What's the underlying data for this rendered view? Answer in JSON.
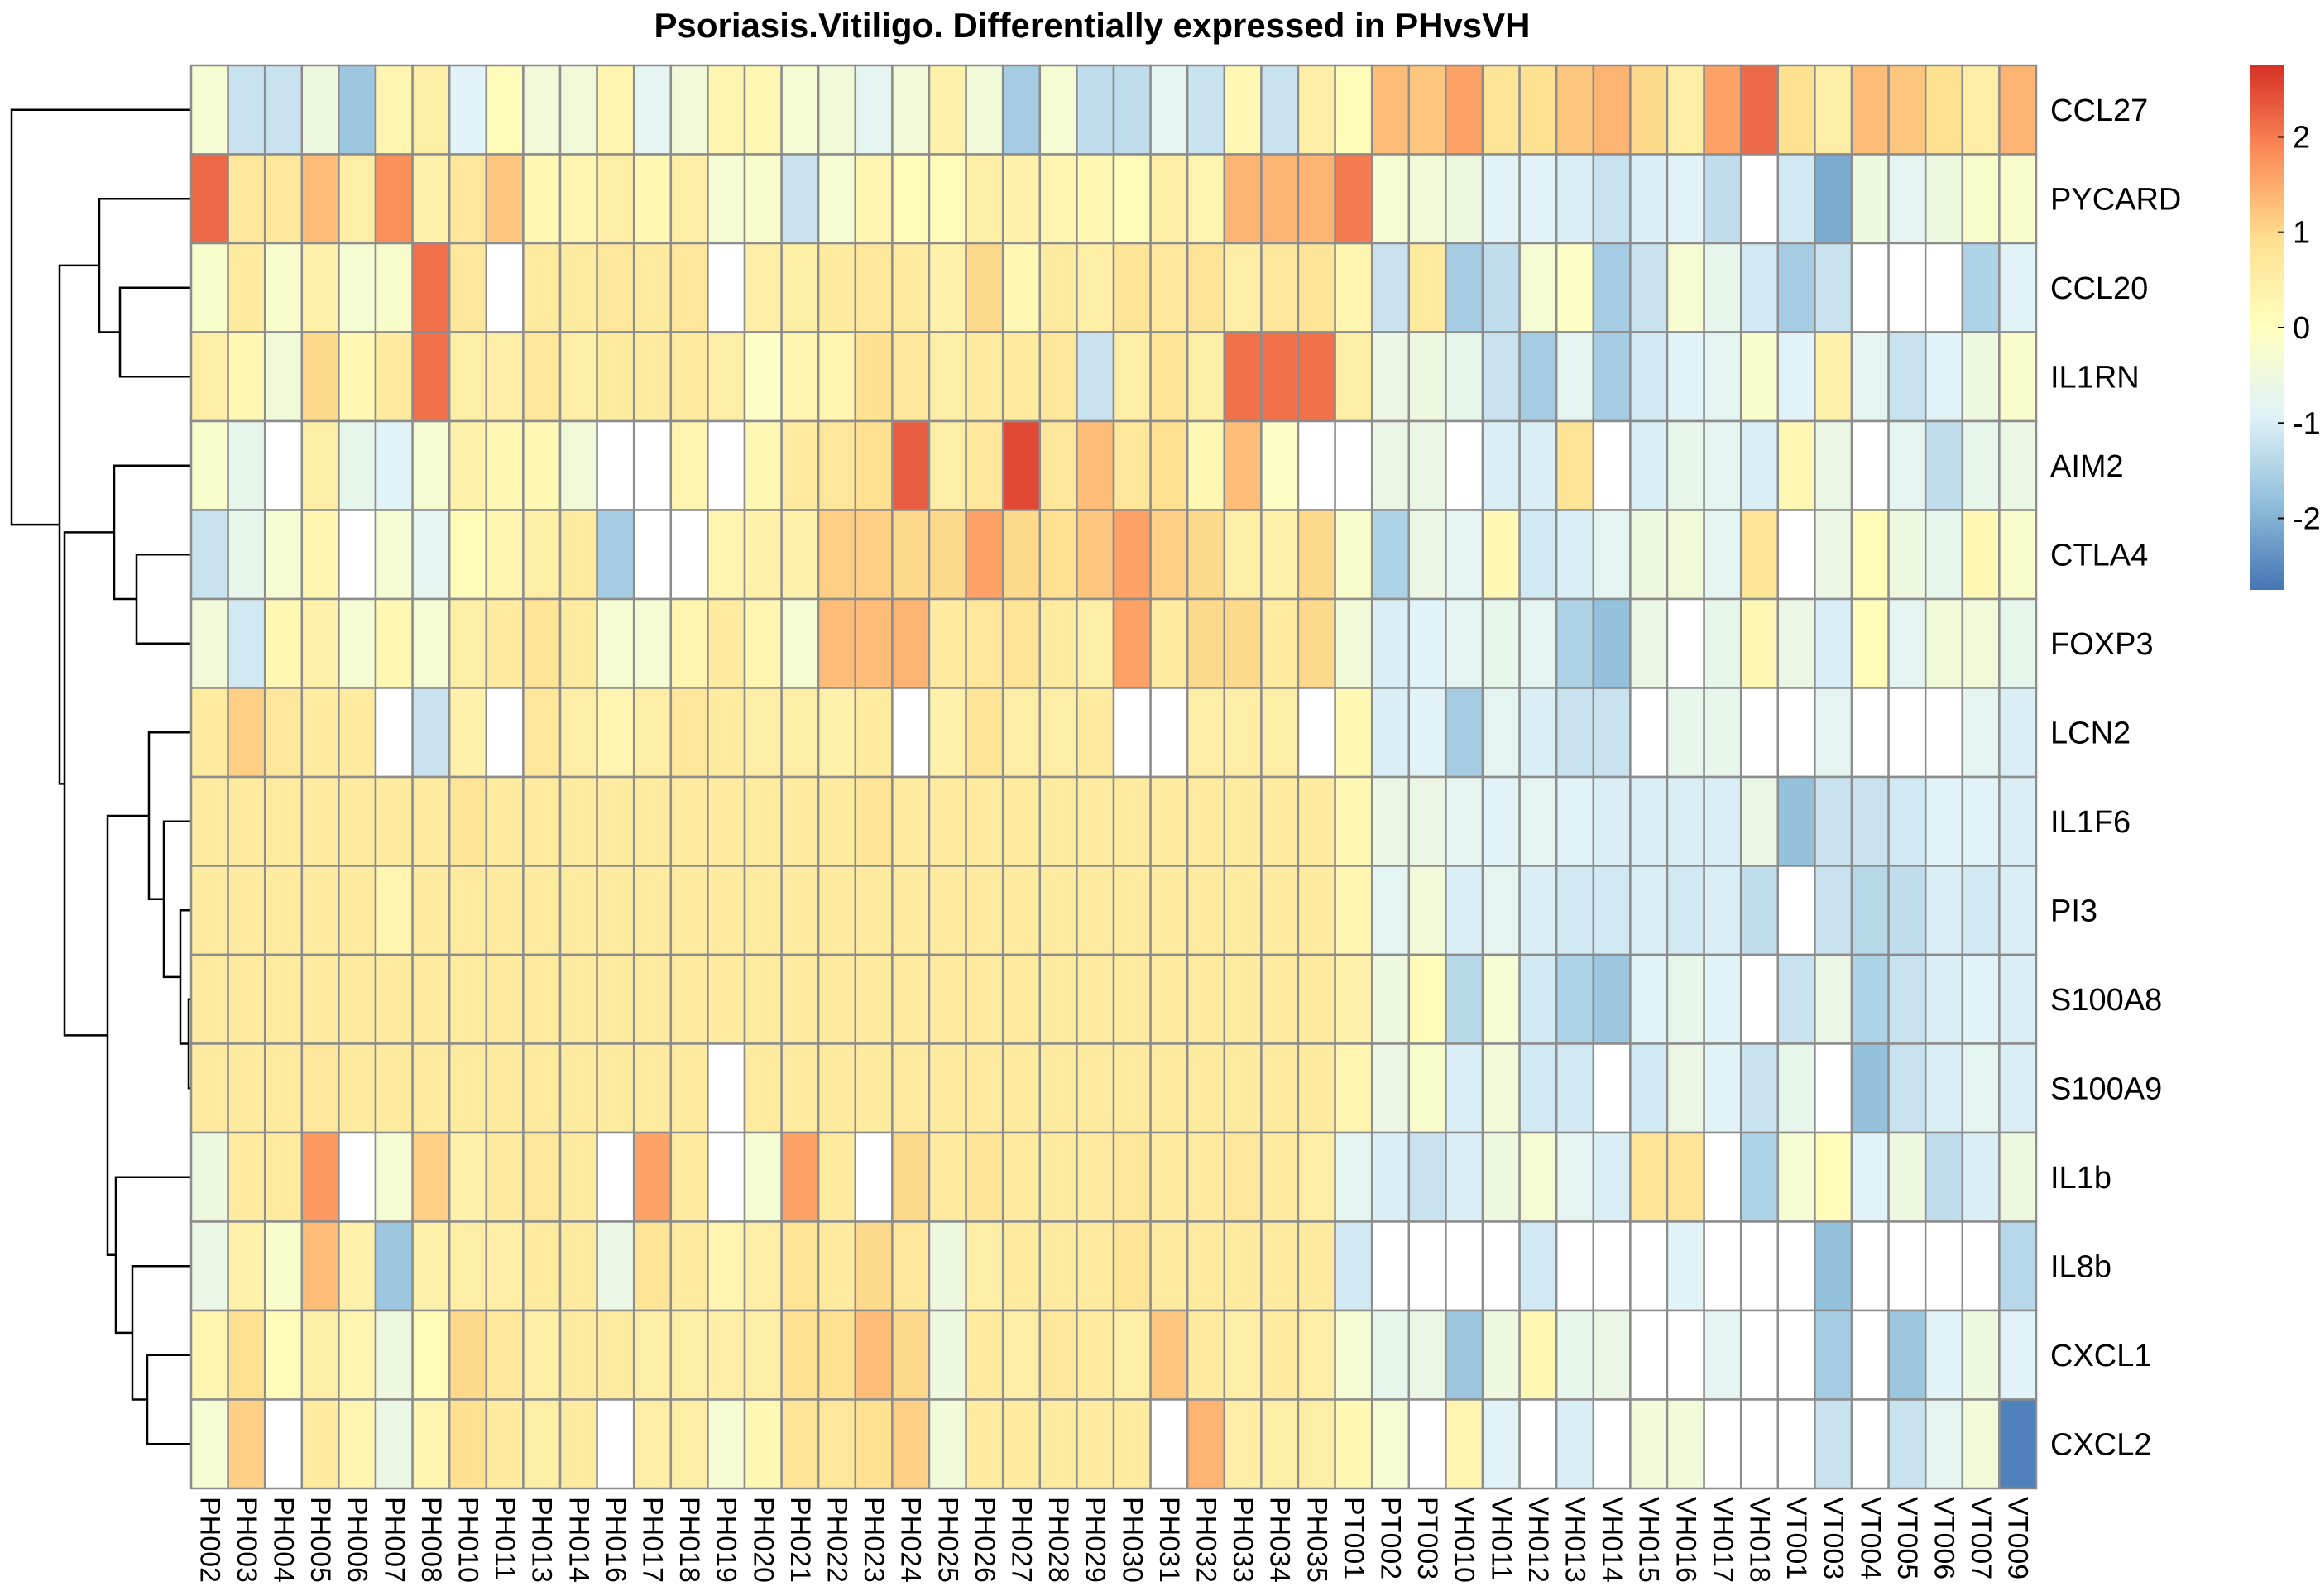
{
  "chart_data": {
    "type": "heatmap",
    "title": "Psoriasis.Vitiligo. Differentially expressed in PHvsVH",
    "rows": [
      "CCL27",
      "PYCARD",
      "CCL20",
      "IL1RN",
      "AIM2",
      "CTLA4",
      "FOXP3",
      "LCN2",
      "IL1F6",
      "PI3",
      "S100A8",
      "S100A9",
      "IL1b",
      "IL8b",
      "CXCL1",
      "CXCL2"
    ],
    "columns": [
      "PH002",
      "PH003",
      "PH004",
      "PH005",
      "PH006",
      "PH007",
      "PH008",
      "PH010",
      "PH011",
      "PH013",
      "PH014",
      "PH016",
      "PH017",
      "PH018",
      "PH019",
      "PH020",
      "PH021",
      "PH022",
      "PH023",
      "PH024",
      "PH025",
      "PH026",
      "PH027",
      "PH028",
      "PH029",
      "PH030",
      "PH031",
      "PH032",
      "PH033",
      "PH034",
      "PH035",
      "PT001",
      "PT002",
      "PT003",
      "VH010",
      "VH011",
      "VH012",
      "VH013",
      "VH014",
      "VH015",
      "VH016",
      "VH017",
      "VH018",
      "VT001",
      "VT003",
      "VT004",
      "VT005",
      "VT006",
      "VT007",
      "VT009"
    ],
    "values": [
      [
        -0.3,
        -1.2,
        -1.2,
        -0.5,
        -1.7,
        0.3,
        0.5,
        -0.9,
        0.1,
        -0.4,
        -0.4,
        0.3,
        -0.8,
        -0.4,
        0.3,
        0.2,
        -0.3,
        -0.4,
        -0.8,
        -0.4,
        0.4,
        -0.4,
        -1.6,
        -0.3,
        -1.3,
        -1.3,
        -0.8,
        -1.2,
        0.2,
        -1.2,
        0.5,
        0.1,
        1.3,
        1.2,
        1.6,
        0.8,
        0.9,
        1.2,
        1.4,
        1.0,
        0.5,
        1.6,
        2.2,
        0.9,
        0.5,
        1.3,
        1.2,
        0.9,
        0.5,
        1.4
      ],
      [
        2.2,
        0.7,
        0.7,
        1.3,
        0.5,
        1.8,
        0.4,
        0.7,
        1.2,
        0.2,
        0.3,
        0.5,
        0.2,
        0.5,
        -0.3,
        -0.2,
        -1.2,
        -0.3,
        0.3,
        0.1,
        0.1,
        0.5,
        0.4,
        0.3,
        0.2,
        0.1,
        0.5,
        0.3,
        1.4,
        1.4,
        1.4,
        2.0,
        -0.3,
        -0.4,
        -0.5,
        -0.9,
        -0.9,
        -1.0,
        -1.2,
        -1.0,
        -0.9,
        -1.3,
        0.0,
        -1.1,
        -2.1,
        -0.5,
        -0.8,
        -0.5,
        -0.2,
        -0.2
      ],
      [
        -0.2,
        0.6,
        -0.2,
        0.4,
        -0.3,
        -0.2,
        2.1,
        0.7,
        0.0,
        0.6,
        0.6,
        0.7,
        0.6,
        0.7,
        0.0,
        0.5,
        0.5,
        0.6,
        0.7,
        0.6,
        0.4,
        1.0,
        0.2,
        0.6,
        0.5,
        0.8,
        0.7,
        0.8,
        0.5,
        0.7,
        0.8,
        0.3,
        -1.2,
        0.6,
        -1.6,
        -1.3,
        -0.3,
        -0.1,
        -1.6,
        -1.2,
        -0.3,
        -0.7,
        -1.1,
        -1.6,
        -1.2,
        0.0,
        0.0,
        0.0,
        -1.5,
        -0.9
      ],
      [
        0.5,
        0.2,
        -0.4,
        1.0,
        0.2,
        0.6,
        2.1,
        0.5,
        0.5,
        0.7,
        0.5,
        0.6,
        0.6,
        0.6,
        0.5,
        -0.1,
        0.3,
        0.3,
        0.9,
        0.7,
        0.5,
        0.6,
        0.6,
        0.7,
        -1.2,
        0.5,
        0.8,
        0.5,
        2.1,
        2.1,
        2.1,
        0.5,
        -0.6,
        -0.5,
        -0.7,
        -1.2,
        -1.6,
        -0.8,
        -1.6,
        -1.1,
        -0.9,
        -0.8,
        -0.2,
        -0.9,
        0.4,
        -0.8,
        -1.2,
        -0.9,
        -0.5,
        -0.2
      ],
      [
        -0.2,
        -0.7,
        0.0,
        0.5,
        -0.7,
        -0.9,
        -0.3,
        0.4,
        0.2,
        0.2,
        -0.4,
        0.0,
        0.0,
        0.3,
        0.0,
        0.2,
        0.6,
        0.7,
        0.9,
        2.3,
        0.5,
        0.7,
        2.5,
        0.7,
        1.3,
        0.7,
        0.9,
        0.2,
        1.3,
        -0.1,
        0.0,
        0.0,
        -0.6,
        -0.6,
        0.0,
        -1.0,
        -1.0,
        0.8,
        0.0,
        -1.0,
        -0.7,
        -0.8,
        -1.0,
        0.2,
        -0.6,
        0.0,
        -0.8,
        -1.3,
        -0.7,
        -0.6
      ],
      [
        -1.2,
        -0.7,
        -0.3,
        0.3,
        0.0,
        -0.3,
        -0.8,
        0.1,
        0.3,
        0.5,
        0.6,
        -1.6,
        0.0,
        0.0,
        0.3,
        0.4,
        0.4,
        1.1,
        1.1,
        1.0,
        1.0,
        1.6,
        1.0,
        0.9,
        1.2,
        1.6,
        1.1,
        1.0,
        0.5,
        0.4,
        1.0,
        -0.2,
        -1.5,
        -0.6,
        -0.8,
        0.2,
        -1.1,
        -1.0,
        -0.8,
        -0.5,
        -0.4,
        -0.8,
        0.8,
        0.0,
        -0.6,
        0.1,
        -0.5,
        -0.7,
        0.2,
        -0.2
      ],
      [
        -0.4,
        -1.1,
        0.2,
        0.4,
        -0.3,
        0.2,
        -0.3,
        0.5,
        0.6,
        0.8,
        0.6,
        -0.3,
        -0.3,
        0.3,
        0.6,
        0.3,
        -0.3,
        1.3,
        1.3,
        1.4,
        0.6,
        0.7,
        0.8,
        0.6,
        0.5,
        1.6,
        0.6,
        1.0,
        1.0,
        0.6,
        1.0,
        -0.4,
        -1.0,
        -0.9,
        -0.8,
        -0.7,
        -0.8,
        -1.5,
        -1.8,
        -0.6,
        0.0,
        -0.7,
        0.2,
        -0.6,
        -1.0,
        0.1,
        -0.8,
        -0.4,
        -0.4,
        -0.7
      ],
      [
        0.6,
        1.1,
        0.7,
        0.6,
        0.6,
        0.0,
        -1.2,
        0.4,
        0.0,
        0.7,
        0.5,
        0.3,
        0.5,
        0.7,
        0.6,
        0.5,
        0.5,
        0.4,
        0.6,
        0.0,
        0.4,
        0.8,
        0.5,
        0.5,
        0.6,
        0.0,
        0.0,
        0.5,
        0.5,
        0.5,
        0.0,
        0.2,
        -1.0,
        -0.9,
        -1.6,
        -0.8,
        -1.0,
        -1.2,
        -1.2,
        0.0,
        -0.7,
        -0.7,
        0.0,
        0.0,
        -0.8,
        0.0,
        0.0,
        0.0,
        -0.8,
        -1.0
      ],
      [
        0.6,
        0.6,
        0.6,
        0.6,
        0.6,
        0.6,
        0.6,
        0.8,
        0.6,
        0.6,
        0.6,
        0.6,
        0.6,
        0.6,
        0.6,
        0.6,
        0.6,
        0.6,
        0.8,
        0.6,
        0.6,
        0.6,
        0.6,
        0.6,
        0.6,
        0.6,
        0.6,
        0.6,
        0.6,
        0.6,
        0.6,
        0.2,
        -0.6,
        -0.6,
        -0.8,
        -0.9,
        -0.8,
        -0.9,
        -1.0,
        -1.0,
        -1.0,
        -1.0,
        -0.6,
        -1.8,
        -1.2,
        -1.2,
        -1.1,
        -0.9,
        -0.9,
        -1.0
      ],
      [
        0.6,
        0.6,
        0.6,
        0.6,
        0.6,
        0.3,
        0.6,
        0.6,
        0.6,
        0.6,
        0.6,
        0.6,
        0.6,
        0.6,
        0.6,
        0.6,
        0.6,
        0.6,
        0.6,
        0.6,
        0.6,
        0.6,
        0.6,
        0.6,
        0.6,
        0.6,
        0.6,
        0.6,
        0.6,
        0.6,
        0.6,
        0.3,
        -0.8,
        -0.4,
        -1.0,
        -0.8,
        -1.0,
        -1.1,
        -1.1,
        -1.0,
        -1.1,
        -1.0,
        -1.3,
        0.0,
        -1.2,
        -1.4,
        -1.3,
        -1.0,
        -1.1,
        -1.0
      ],
      [
        0.6,
        0.6,
        0.6,
        0.6,
        0.6,
        0.6,
        0.6,
        0.6,
        0.6,
        0.6,
        0.6,
        0.6,
        0.6,
        0.6,
        0.6,
        0.6,
        0.6,
        0.6,
        0.6,
        0.6,
        0.6,
        0.6,
        0.6,
        0.6,
        0.6,
        0.6,
        0.6,
        0.6,
        0.6,
        0.6,
        0.6,
        0.4,
        -0.5,
        0.1,
        -1.4,
        -0.3,
        -1.1,
        -1.5,
        -1.7,
        -0.9,
        -0.7,
        -0.9,
        0.0,
        -1.2,
        -0.6,
        -1.5,
        -1.2,
        -1.0,
        -0.9,
        -1.0
      ],
      [
        0.6,
        0.6,
        0.6,
        0.7,
        0.6,
        0.6,
        0.6,
        0.6,
        0.6,
        0.6,
        0.6,
        0.6,
        0.6,
        0.6,
        0.0,
        0.6,
        0.6,
        0.6,
        0.6,
        0.6,
        0.6,
        0.6,
        0.6,
        0.6,
        0.6,
        0.6,
        0.6,
        0.6,
        0.6,
        0.6,
        0.6,
        0.3,
        -0.6,
        -0.2,
        -1.0,
        -0.4,
        -1.1,
        -1.1,
        0.0,
        -1.1,
        -0.6,
        -0.9,
        -1.2,
        -0.7,
        0.0,
        -1.8,
        -1.2,
        -1.0,
        -0.8,
        -1.0
      ],
      [
        -0.5,
        0.6,
        0.6,
        1.7,
        0.0,
        -0.3,
        1.1,
        0.4,
        0.6,
        0.7,
        0.6,
        0.0,
        1.6,
        0.6,
        0.0,
        -0.3,
        1.6,
        0.6,
        0.0,
        1.0,
        0.6,
        0.8,
        0.6,
        0.6,
        0.6,
        0.7,
        0.6,
        0.6,
        0.7,
        0.6,
        0.5,
        -0.8,
        -1.0,
        -1.2,
        -1.0,
        -0.5,
        -0.3,
        -0.8,
        -1.0,
        0.8,
        0.8,
        0.0,
        -1.5,
        -0.3,
        0.1,
        -0.9,
        -0.5,
        -1.3,
        -1.0,
        -0.5
      ],
      [
        -0.6,
        0.4,
        -0.2,
        1.3,
        0.4,
        -1.7,
        0.4,
        0.5,
        0.5,
        0.6,
        0.6,
        -0.6,
        0.8,
        0.6,
        0.3,
        0.5,
        0.8,
        0.6,
        1.0,
        0.7,
        -0.5,
        0.5,
        0.6,
        0.6,
        0.6,
        0.8,
        0.6,
        0.6,
        0.6,
        0.6,
        0.6,
        -1.1,
        0.0,
        0.0,
        0.0,
        0.0,
        -1.1,
        0.0,
        0.0,
        0.0,
        -0.9,
        0.0,
        0.0,
        0.0,
        -1.8,
        0.0,
        0.0,
        0.0,
        0.0,
        -1.4
      ],
      [
        0.3,
        0.9,
        0.1,
        0.5,
        0.3,
        -0.5,
        0.1,
        1.0,
        0.7,
        0.5,
        0.6,
        0.6,
        0.5,
        0.5,
        0.5,
        0.5,
        0.9,
        0.9,
        1.3,
        1.0,
        -0.5,
        0.6,
        0.5,
        0.7,
        0.6,
        0.5,
        1.2,
        0.6,
        0.5,
        0.6,
        0.5,
        -0.3,
        -0.7,
        -0.6,
        -1.7,
        -0.5,
        0.2,
        -0.7,
        -0.6,
        0.0,
        0.0,
        -0.8,
        0.0,
        0.0,
        -1.6,
        0.0,
        -1.7,
        -0.9,
        -0.5,
        -0.9
      ],
      [
        -0.3,
        1.1,
        0.0,
        0.6,
        0.3,
        -0.6,
        0.3,
        0.9,
        0.6,
        0.5,
        0.6,
        0.0,
        0.5,
        0.5,
        -0.3,
        0.2,
        0.8,
        0.7,
        0.9,
        1.1,
        -0.4,
        0.6,
        0.6,
        0.6,
        0.6,
        0.6,
        0.0,
        1.4,
        0.5,
        0.5,
        0.5,
        0.2,
        -0.3,
        0.0,
        0.3,
        -0.9,
        0.0,
        -1.0,
        0.0,
        -0.4,
        -0.4,
        0.0,
        0.0,
        0.0,
        -1.2,
        0.0,
        -1.2,
        -0.8,
        -0.4,
        -2.6
      ]
    ],
    "scale": {
      "ticks": [
        2,
        1,
        0,
        -1,
        -2
      ],
      "tick_labels": [
        "2",
        "1",
        "0",
        "-1",
        "-2"
      ],
      "range": [
        -2.75,
        2.75
      ],
      "colors": [
        "#4575B4",
        "#91BFDB",
        "#E0F3F8",
        "#FFFFBF",
        "#FEE090",
        "#FC8D59",
        "#D73027"
      ]
    },
    "missing_color": "#FFFFFF",
    "grid_color": "#8C8C8C",
    "dendrogram": "rows"
  }
}
